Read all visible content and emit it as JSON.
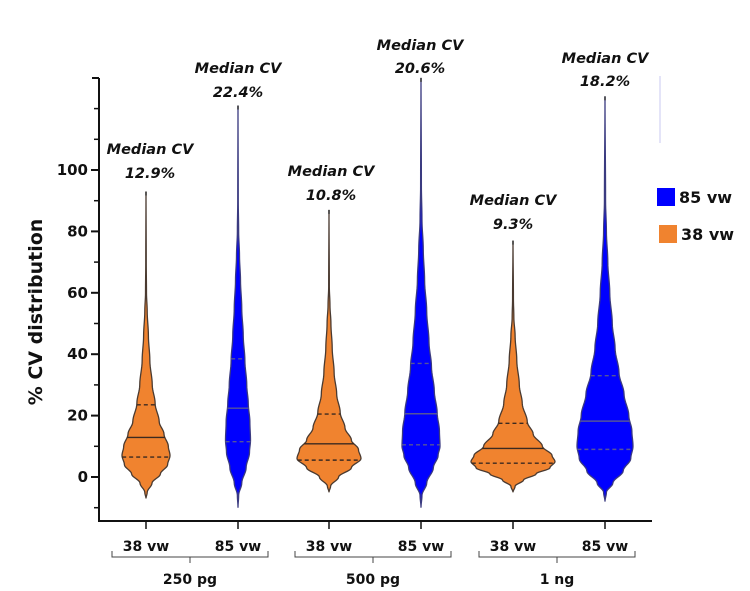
{
  "chart_data": {
    "type": "violin",
    "title": "",
    "xlabel": "",
    "ylabel": "% CV distribution",
    "ylim": [
      -14,
      130
    ],
    "yticks_major": [
      0,
      20,
      40,
      60,
      80,
      100
    ],
    "yticks_minor": [
      -10,
      10,
      30,
      50,
      70,
      90,
      110,
      120
    ],
    "grid": false,
    "legend": {
      "placement": "right",
      "entries": [
        {
          "label": "85 vw",
          "color": "#0000ff"
        },
        {
          "label": "38 vw",
          "color": "#f0832f"
        }
      ]
    },
    "groups": [
      {
        "label": "250 pg",
        "categories": [
          0,
          1
        ]
      },
      {
        "label": "500 pg",
        "categories": [
          2,
          3
        ]
      },
      {
        "label": "1 ng",
        "categories": [
          4,
          5
        ]
      }
    ],
    "categories": [
      "38 vw",
      "85 vw",
      "38 vw",
      "85 vw",
      "38 vw",
      "85 vw"
    ],
    "violins": [
      {
        "series": "38 vw",
        "group": "250 pg",
        "color": "#f0832f",
        "min": -7,
        "max": 93,
        "median": 12.9,
        "q1": 6.5,
        "q3": 23.5,
        "annotation": [
          "Median CV",
          "12.9%"
        ],
        "density": [
          [
            -7,
            0
          ],
          [
            -5,
            0.05
          ],
          [
            -2,
            0.25
          ],
          [
            1,
            0.6
          ],
          [
            4,
            0.9
          ],
          [
            7,
            1
          ],
          [
            10,
            0.93
          ],
          [
            14,
            0.75
          ],
          [
            18,
            0.55
          ],
          [
            24,
            0.38
          ],
          [
            30,
            0.26
          ],
          [
            38,
            0.16
          ],
          [
            46,
            0.1
          ],
          [
            54,
            0.05
          ],
          [
            60,
            0.02
          ],
          [
            70,
            0.01
          ],
          [
            93,
            0
          ]
        ]
      },
      {
        "series": "85 vw",
        "group": "250 pg",
        "color": "#0000ff",
        "min": -10,
        "max": 121,
        "median": 22.4,
        "q1": 11.5,
        "q3": 38.5,
        "annotation": [
          "Median CV",
          "22.4%"
        ],
        "density": [
          [
            -10,
            0
          ],
          [
            -6,
            0.05
          ],
          [
            -2,
            0.3
          ],
          [
            3,
            0.65
          ],
          [
            8,
            0.92
          ],
          [
            12,
            1
          ],
          [
            18,
            0.95
          ],
          [
            24,
            0.82
          ],
          [
            30,
            0.7
          ],
          [
            38,
            0.55
          ],
          [
            46,
            0.42
          ],
          [
            55,
            0.3
          ],
          [
            64,
            0.2
          ],
          [
            72,
            0.12
          ],
          [
            80,
            0.05
          ],
          [
            90,
            0.02
          ],
          [
            121,
            0
          ]
        ]
      },
      {
        "series": "38 vw",
        "group": "500 pg",
        "color": "#f0832f",
        "min": -5,
        "max": 87,
        "median": 10.8,
        "q1": 5.5,
        "q3": 20.5,
        "annotation": [
          "Median CV",
          "10.8%"
        ],
        "density": [
          [
            -5,
            0
          ],
          [
            -3,
            0.05
          ],
          [
            0,
            0.3
          ],
          [
            3,
            0.7
          ],
          [
            6,
            1
          ],
          [
            9,
            0.92
          ],
          [
            12,
            0.7
          ],
          [
            16,
            0.5
          ],
          [
            21,
            0.35
          ],
          [
            27,
            0.24
          ],
          [
            34,
            0.16
          ],
          [
            42,
            0.1
          ],
          [
            50,
            0.06
          ],
          [
            56,
            0.03
          ],
          [
            62,
            0.01
          ],
          [
            87,
            0
          ]
        ]
      },
      {
        "series": "85 vw",
        "group": "500 pg",
        "color": "#0000ff",
        "min": -10,
        "max": 130,
        "median": 20.6,
        "q1": 10.5,
        "q3": 37,
        "annotation": [
          "Median CV",
          "20.6%"
        ],
        "density": [
          [
            -10,
            0
          ],
          [
            -6,
            0.05
          ],
          [
            -2,
            0.3
          ],
          [
            3,
            0.65
          ],
          [
            7,
            0.9
          ],
          [
            10,
            1
          ],
          [
            15,
            0.97
          ],
          [
            21,
            0.85
          ],
          [
            28,
            0.7
          ],
          [
            36,
            0.55
          ],
          [
            44,
            0.42
          ],
          [
            54,
            0.3
          ],
          [
            64,
            0.19
          ],
          [
            74,
            0.12
          ],
          [
            84,
            0.05
          ],
          [
            95,
            0.02
          ],
          [
            130,
            0
          ]
        ]
      },
      {
        "series": "38 vw",
        "group": "1 ng",
        "color": "#f0832f",
        "min": -5,
        "max": 77,
        "median": 9.3,
        "q1": 4.5,
        "q3": 17.5,
        "annotation": [
          "Median CV",
          "9.3%"
        ],
        "density": [
          [
            -5,
            0
          ],
          [
            -3,
            0.05
          ],
          [
            -1,
            0.25
          ],
          [
            1,
            0.55
          ],
          [
            3,
            0.88
          ],
          [
            5,
            1
          ],
          [
            7,
            0.93
          ],
          [
            10,
            0.7
          ],
          [
            14,
            0.48
          ],
          [
            18,
            0.34
          ],
          [
            24,
            0.22
          ],
          [
            30,
            0.15
          ],
          [
            38,
            0.09
          ],
          [
            46,
            0.05
          ],
          [
            52,
            0.02
          ],
          [
            58,
            0.01
          ],
          [
            77,
            0
          ]
        ]
      },
      {
        "series": "85 vw",
        "group": "1 ng",
        "color": "#0000ff",
        "min": -8,
        "max": 124,
        "median": 18.2,
        "q1": 9,
        "q3": 33,
        "annotation": [
          "Median CV",
          "18.2%"
        ],
        "density": [
          [
            -8,
            0
          ],
          [
            -5,
            0.05
          ],
          [
            -2,
            0.28
          ],
          [
            2,
            0.65
          ],
          [
            6,
            0.92
          ],
          [
            10,
            1
          ],
          [
            15,
            0.96
          ],
          [
            20,
            0.85
          ],
          [
            27,
            0.68
          ],
          [
            34,
            0.5
          ],
          [
            42,
            0.36
          ],
          [
            50,
            0.26
          ],
          [
            60,
            0.17
          ],
          [
            70,
            0.1
          ],
          [
            80,
            0.05
          ],
          [
            90,
            0.02
          ],
          [
            124,
            0
          ]
        ]
      }
    ]
  }
}
